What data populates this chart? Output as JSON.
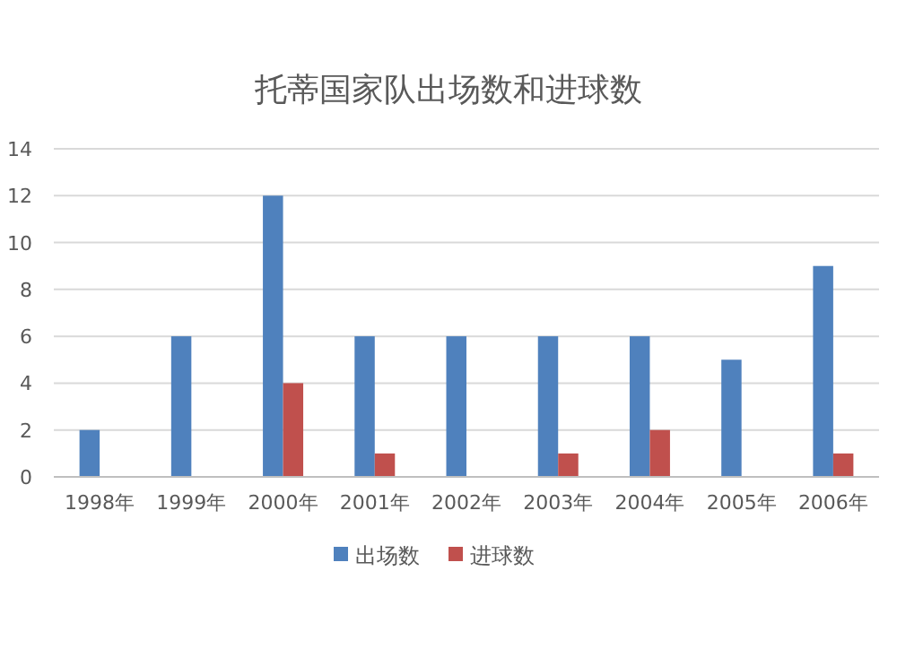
{
  "chart_data": {
    "type": "bar",
    "title": "托蒂国家队出场数和进球数",
    "categories": [
      "1998年",
      "1999年",
      "2000年",
      "2001年",
      "2002年",
      "2003年",
      "2004年",
      "2005年",
      "2006年"
    ],
    "series": [
      {
        "name": "出场数",
        "color": "#4f81bd",
        "values": [
          2,
          6,
          12,
          6,
          6,
          6,
          6,
          5,
          9
        ]
      },
      {
        "name": "进球数",
        "color": "#c0504d",
        "values": [
          0,
          0,
          4,
          1,
          0,
          1,
          2,
          0,
          1
        ]
      }
    ],
    "ylim": [
      0,
      14
    ],
    "yticks": [
      0,
      2,
      4,
      6,
      8,
      10,
      12,
      14
    ],
    "grid": "y",
    "legend": "bottom"
  }
}
